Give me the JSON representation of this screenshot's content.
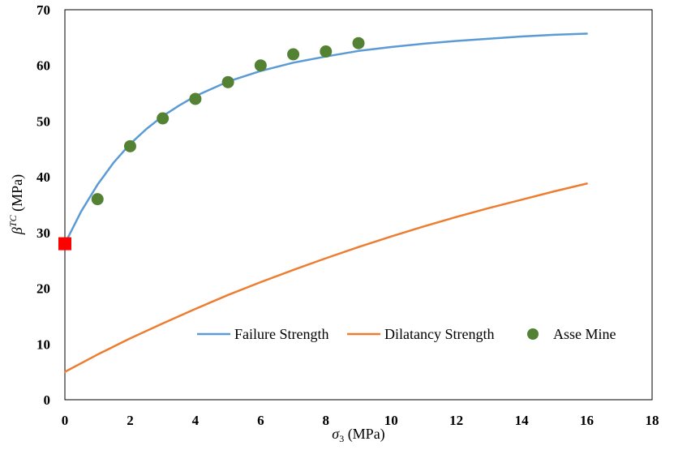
{
  "colors": {
    "failure": "#5B9BD5",
    "dilatancy": "#ED7D31",
    "asse": "#548235",
    "intercept": "#FF0000"
  },
  "chart_data": {
    "type": "scatter",
    "xlabel_symbol": "σ",
    "xlabel_sub": "3",
    "xlabel_unit": " (MPa)",
    "ylabel_symbol": "β",
    "ylabel_sup": "TC",
    "ylabel_unit": " (MPa)",
    "xlim": [
      0,
      18
    ],
    "ylim": [
      0,
      70
    ],
    "xticks": [
      0,
      2,
      4,
      6,
      8,
      10,
      12,
      14,
      16,
      18
    ],
    "yticks": [
      0,
      10,
      20,
      30,
      40,
      50,
      60,
      70
    ],
    "legend_position": "bottom-right",
    "series": [
      {
        "name": "Failure Strength",
        "kind": "line",
        "color": "#5B9BD5",
        "x": [
          0,
          0.5,
          1,
          1.5,
          2,
          2.5,
          3,
          3.5,
          4,
          5,
          6,
          7,
          8,
          9,
          10,
          11,
          12,
          13,
          14,
          15,
          16
        ],
        "y": [
          28.0,
          33.8,
          38.6,
          42.6,
          45.9,
          48.6,
          50.9,
          52.8,
          54.5,
          57.1,
          59.0,
          60.5,
          61.6,
          62.6,
          63.3,
          63.9,
          64.4,
          64.8,
          65.2,
          65.5,
          65.7
        ]
      },
      {
        "name": "Dilatancy Strength",
        "kind": "line",
        "color": "#ED7D31",
        "x": [
          0,
          1,
          2,
          3,
          4,
          5,
          6,
          7,
          8,
          9,
          10,
          11,
          12,
          13,
          14,
          15,
          16
        ],
        "y": [
          5.0,
          8.1,
          11.0,
          13.7,
          16.3,
          18.8,
          21.1,
          23.3,
          25.4,
          27.4,
          29.3,
          31.1,
          32.8,
          34.4,
          35.9,
          37.4,
          38.8
        ]
      },
      {
        "name": "Asse Mine",
        "kind": "scatter",
        "color": "#548235",
        "x": [
          1,
          2,
          3,
          4,
          5,
          6,
          7,
          8,
          9
        ],
        "y": [
          36,
          45.5,
          50.5,
          54,
          57,
          60,
          62,
          62.5,
          64
        ]
      }
    ],
    "intercept_point": {
      "x": 0,
      "y": 28
    }
  }
}
